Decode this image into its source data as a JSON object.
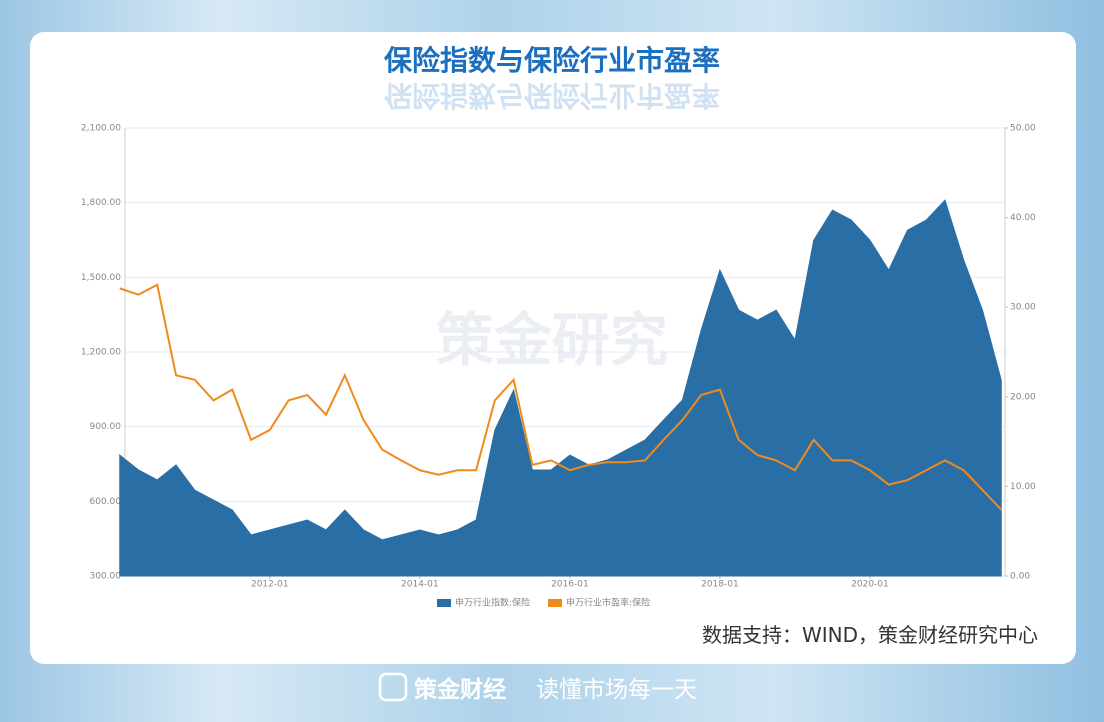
{
  "chart_data": {
    "type": "area-line",
    "title": "保险指数与保险行业市盈率",
    "x": [
      2010.0,
      2010.25,
      2010.5,
      2010.75,
      2011.0,
      2011.25,
      2011.5,
      2011.75,
      2012.0,
      2012.25,
      2012.5,
      2012.75,
      2013.0,
      2013.25,
      2013.5,
      2013.75,
      2014.0,
      2014.25,
      2014.5,
      2014.75,
      2015.0,
      2015.25,
      2015.5,
      2015.75,
      2016.0,
      2016.25,
      2016.5,
      2016.75,
      2017.0,
      2017.25,
      2017.5,
      2017.75,
      2018.0,
      2018.25,
      2018.5,
      2018.75,
      2019.0,
      2019.25,
      2019.5,
      2019.75,
      2020.0,
      2020.25,
      2020.5,
      2020.75,
      2021.0,
      2021.25,
      2021.5,
      2021.75
    ],
    "series": [
      {
        "name": "申万行业指数:保险",
        "color": "#2a6ea6",
        "values": [
          786,
          726,
          686,
          746,
          645,
          605,
          565,
          465,
          485,
          505,
          525,
          485,
          565,
          485,
          445,
          465,
          485,
          465,
          485,
          525,
          886,
          1047,
          726,
          726,
          786,
          746,
          766,
          806,
          846,
          927,
          1007,
          1288,
          1529,
          1368,
          1328,
          1368,
          1248,
          1649,
          1770,
          1730,
          1649,
          1529,
          1689,
          1730,
          1810,
          1569,
          1368,
          1087
        ]
      },
      {
        "name": "申万行业市盈率:保险",
        "color": "#f08a1c",
        "axis": "y2",
        "values": [
          32.1,
          31.4,
          32.5,
          22.4,
          21.9,
          19.6,
          20.8,
          15.2,
          16.3,
          19.6,
          20.2,
          18.0,
          22.4,
          17.4,
          14.1,
          12.9,
          11.8,
          11.3,
          11.8,
          11.8,
          19.6,
          21.9,
          12.4,
          12.9,
          11.8,
          12.4,
          12.7,
          12.7,
          12.9,
          15.2,
          17.4,
          20.2,
          20.8,
          15.2,
          13.5,
          12.9,
          11.8,
          15.2,
          12.9,
          12.9,
          11.8,
          10.2,
          10.7,
          11.8,
          12.9,
          11.8,
          9.6,
          7.4
        ]
      }
    ],
    "xlim": [
      2010.07,
      2021.8
    ],
    "xticks": [
      {
        "value": 2012,
        "label": "2012-01"
      },
      {
        "value": 2014,
        "label": "2014-01"
      },
      {
        "value": 2016,
        "label": "2016-01"
      },
      {
        "value": 2018,
        "label": "2018-01"
      },
      {
        "value": 2020,
        "label": "2020-01"
      }
    ],
    "ylim": [
      300,
      2100
    ],
    "yticks": [
      {
        "value": 300,
        "label": "300.00"
      },
      {
        "value": 600,
        "label": "600.00"
      },
      {
        "value": 900,
        "label": "900.00"
      },
      {
        "value": 1200,
        "label": "1,200.00"
      },
      {
        "value": 1500,
        "label": "1,500.00"
      },
      {
        "value": 1800,
        "label": "1,800.00"
      },
      {
        "value": 2100,
        "label": "2,100.00"
      }
    ],
    "y2lim": [
      0,
      50
    ],
    "y2ticks": [
      {
        "value": 0,
        "label": "0.00"
      },
      {
        "value": 10,
        "label": "10.00"
      },
      {
        "value": 20,
        "label": "20.00"
      },
      {
        "value": 30,
        "label": "30.00"
      },
      {
        "value": 40,
        "label": "40.00"
      },
      {
        "value": 50,
        "label": "50.00"
      }
    ],
    "grid": true,
    "legend": "bottom"
  },
  "watermark": "策金研究",
  "source": "数据支持：WIND，策金财经研究中心",
  "footer": {
    "brand": "策金财经",
    "slogan": "读懂市场每一天"
  }
}
